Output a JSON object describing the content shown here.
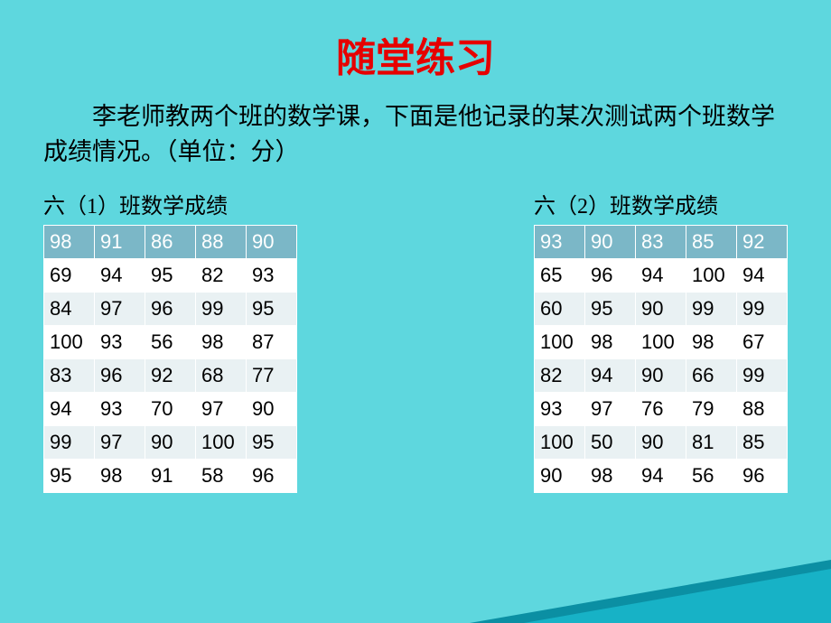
{
  "colors": {
    "background": "#5ed7de",
    "title": "#e60000",
    "text": "#000000",
    "header_bg": "#7bb7c7",
    "header_text": "#ffffff",
    "row_even_bg": "#ffffff",
    "row_odd_bg": "#e9f1f3",
    "cell_border": "#ffffff",
    "triangle_fill": "#17b2c6",
    "triangle_outline": "#0b8fa3"
  },
  "title": "随堂练习",
  "intro": "李老师教两个班的数学课，下面是他记录的某次测试两个班数学成绩情况。（单位：分）",
  "tables": [
    {
      "caption": "六（1）班数学成绩",
      "rows": [
        [
          "98",
          "91",
          "86",
          "88",
          "90"
        ],
        [
          "69",
          "94",
          "95",
          "82",
          "93"
        ],
        [
          "84",
          "97",
          "96",
          "99",
          "95"
        ],
        [
          "100",
          "93",
          "56",
          "98",
          "87"
        ],
        [
          "83",
          "96",
          "92",
          "68",
          "77"
        ],
        [
          "94",
          "93",
          "70",
          "97",
          "90"
        ],
        [
          "99",
          "97",
          "90",
          "100",
          "95"
        ],
        [
          "95",
          "98",
          "91",
          "58",
          "96"
        ]
      ]
    },
    {
      "caption": "六（2）班数学成绩",
      "rows": [
        [
          "93",
          "90",
          "83",
          "85",
          "92"
        ],
        [
          "65",
          "96",
          "94",
          "100",
          "94"
        ],
        [
          "60",
          "95",
          "90",
          "99",
          "99"
        ],
        [
          "100",
          "98",
          "100",
          "98",
          "67"
        ],
        [
          "82",
          "94",
          "90",
          "66",
          "99"
        ],
        [
          "93",
          "97",
          "76",
          "79",
          "88"
        ],
        [
          "100",
          "50",
          "90",
          "81",
          "85"
        ],
        [
          "90",
          "98",
          "94",
          "56",
          "96"
        ]
      ]
    }
  ]
}
